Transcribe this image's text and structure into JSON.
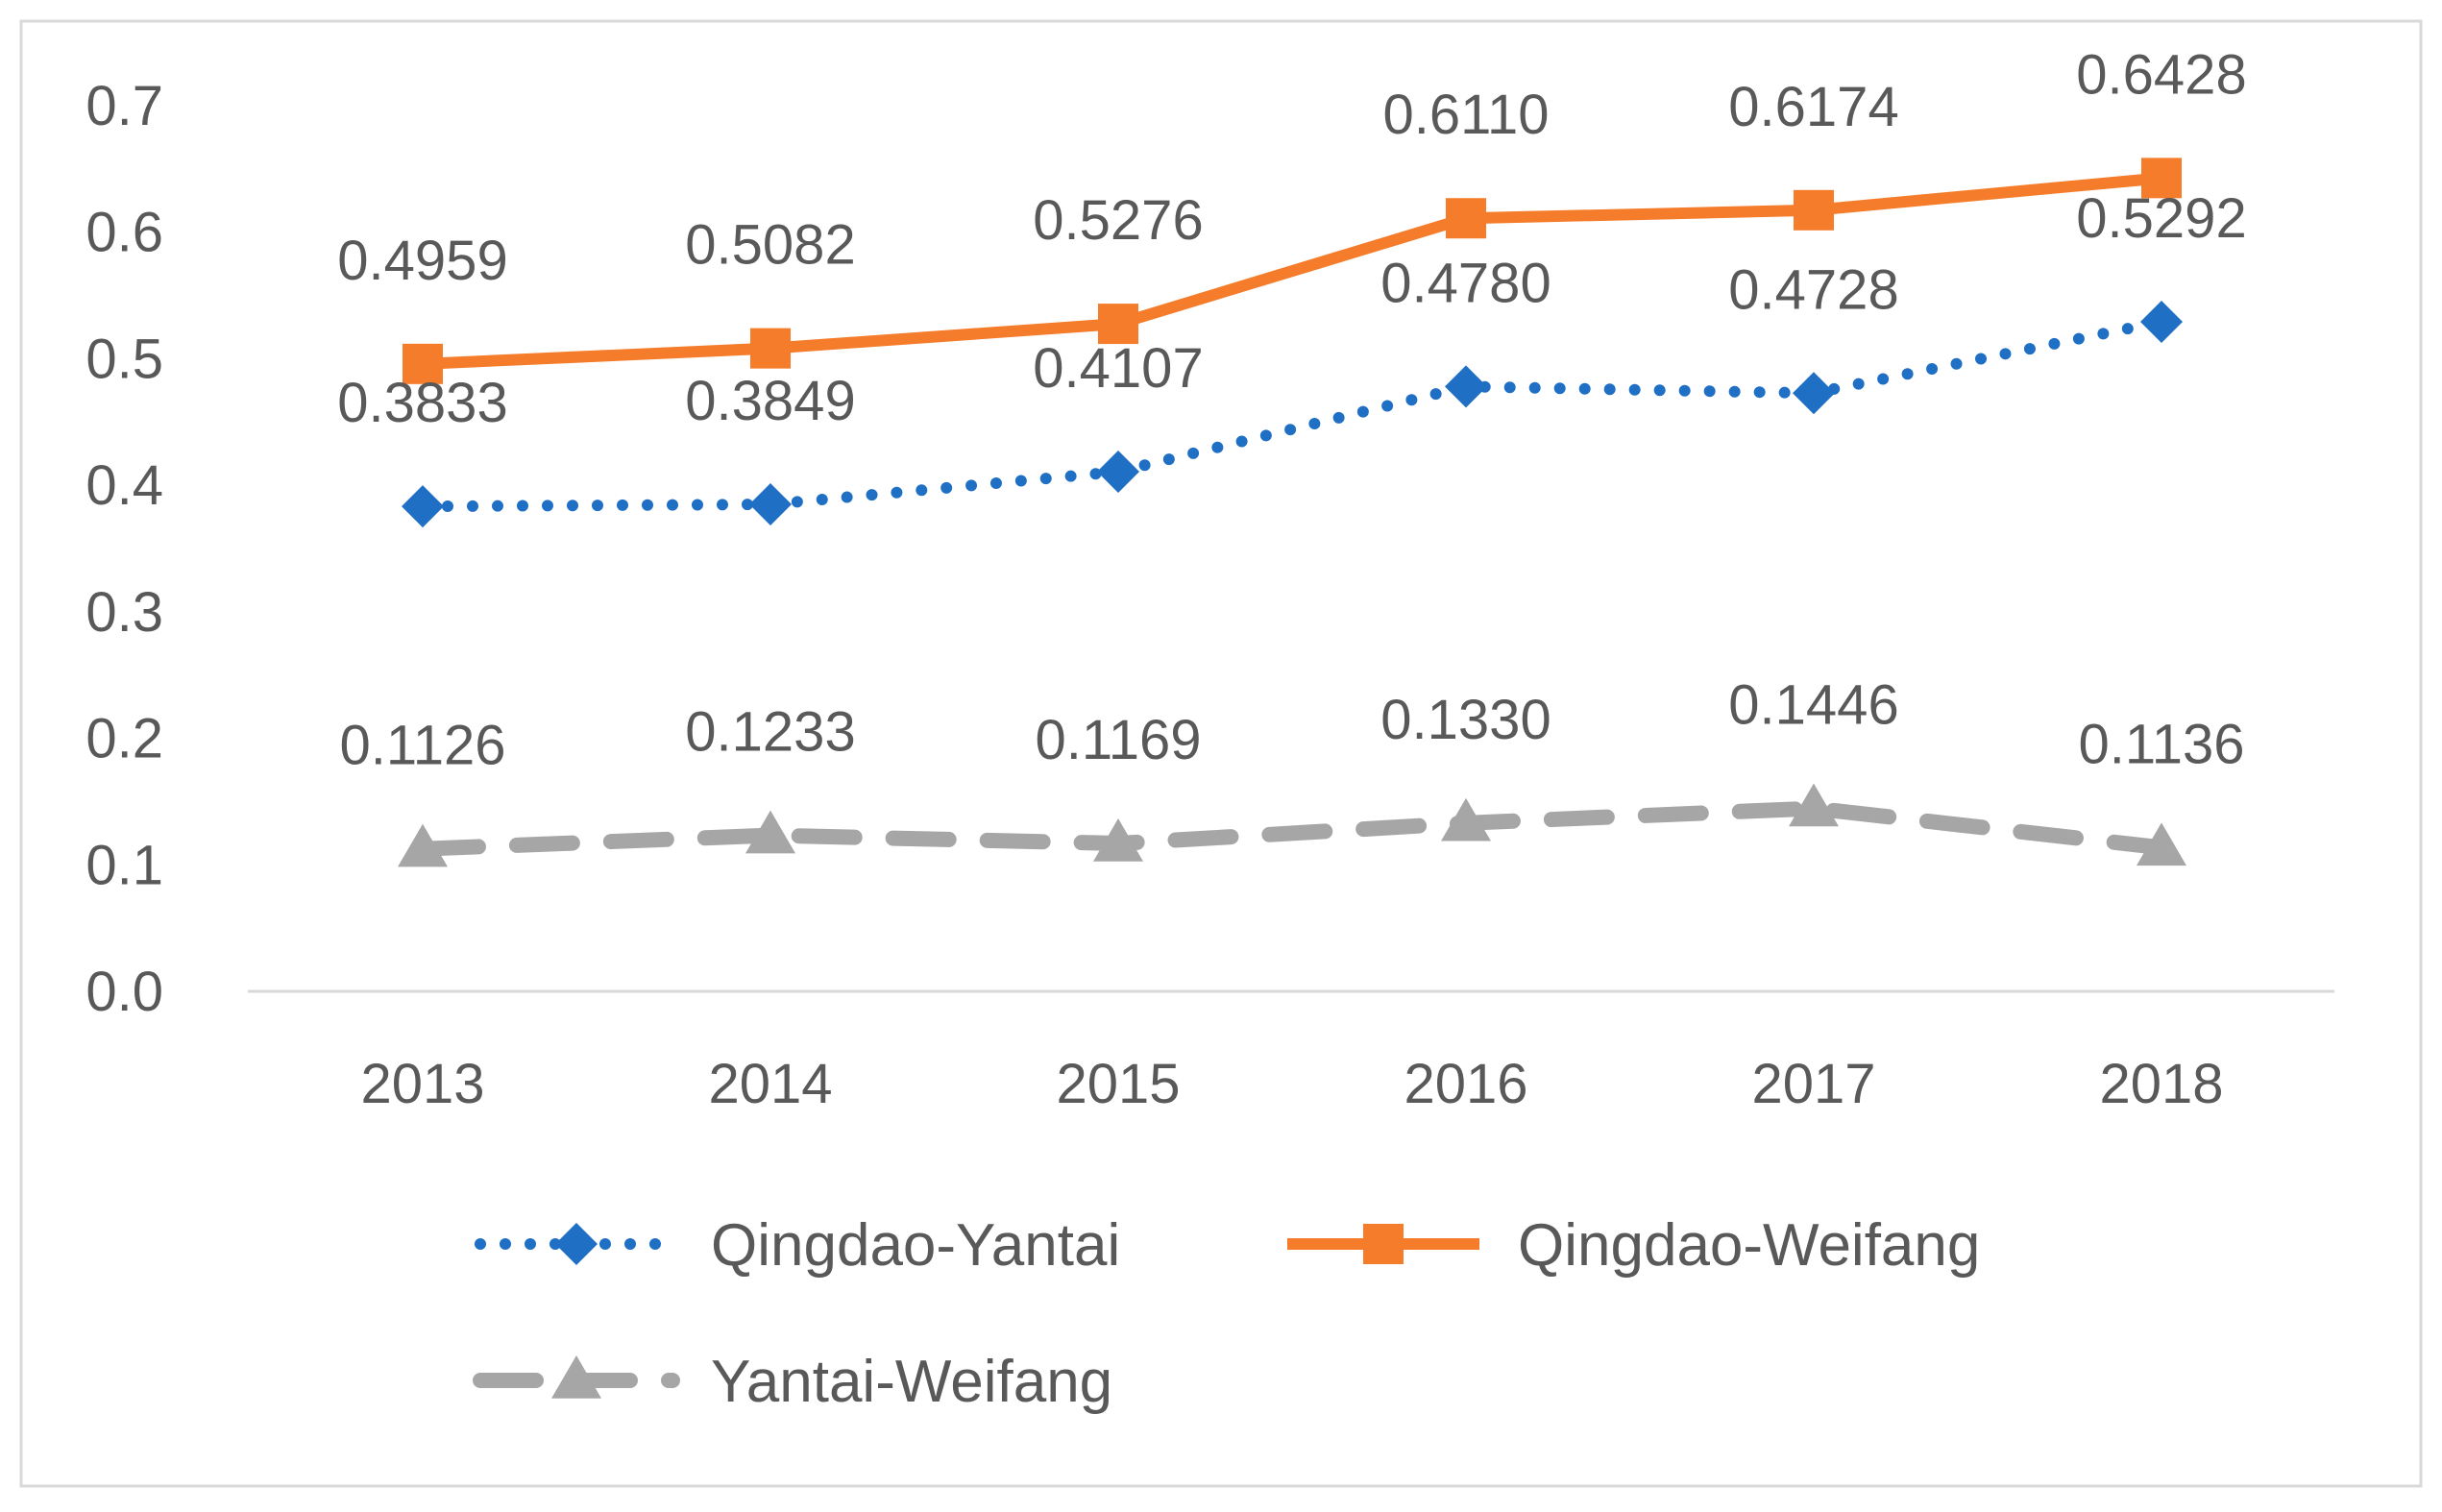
{
  "chart_data": {
    "type": "line",
    "categories": [
      "2013",
      "2014",
      "2015",
      "2016",
      "2017",
      "2018"
    ],
    "ylim": [
      0,
      0.7
    ],
    "y_ticks": [
      "0.0",
      "0.1",
      "0.2",
      "0.3",
      "0.4",
      "0.5",
      "0.6",
      "0.7"
    ],
    "grid": false,
    "legend_position": "bottom",
    "series": [
      {
        "name": "Qingdao-Yantai",
        "marker": "diamond",
        "line_style": "dotted",
        "color": "#1f6fc5",
        "values": [
          0.3833,
          0.3849,
          0.4107,
          0.478,
          0.4728,
          0.5292
        ],
        "labels": [
          "0.3833",
          "0.3849",
          "0.4107",
          "0.4780",
          "0.4728",
          "0.5292"
        ]
      },
      {
        "name": "Qingdao-Weifang",
        "marker": "square",
        "line_style": "solid",
        "color": "#f47c2a",
        "values": [
          0.4959,
          0.5082,
          0.5276,
          0.611,
          0.6174,
          0.6428
        ],
        "labels": [
          "0.4959",
          "0.5082",
          "0.5276",
          "0.6110",
          "0.6174",
          "0.6428"
        ]
      },
      {
        "name": "Yantai-Weifang",
        "marker": "triangle",
        "line_style": "dashed",
        "color": "#a6a6a6",
        "values": [
          0.1126,
          0.1233,
          0.1169,
          0.133,
          0.1446,
          0.1136
        ],
        "labels": [
          "0.1126",
          "0.1233",
          "0.1169",
          "0.1330",
          "0.1446",
          "0.1136"
        ]
      }
    ],
    "title": "",
    "xlabel": "",
    "ylabel": ""
  }
}
